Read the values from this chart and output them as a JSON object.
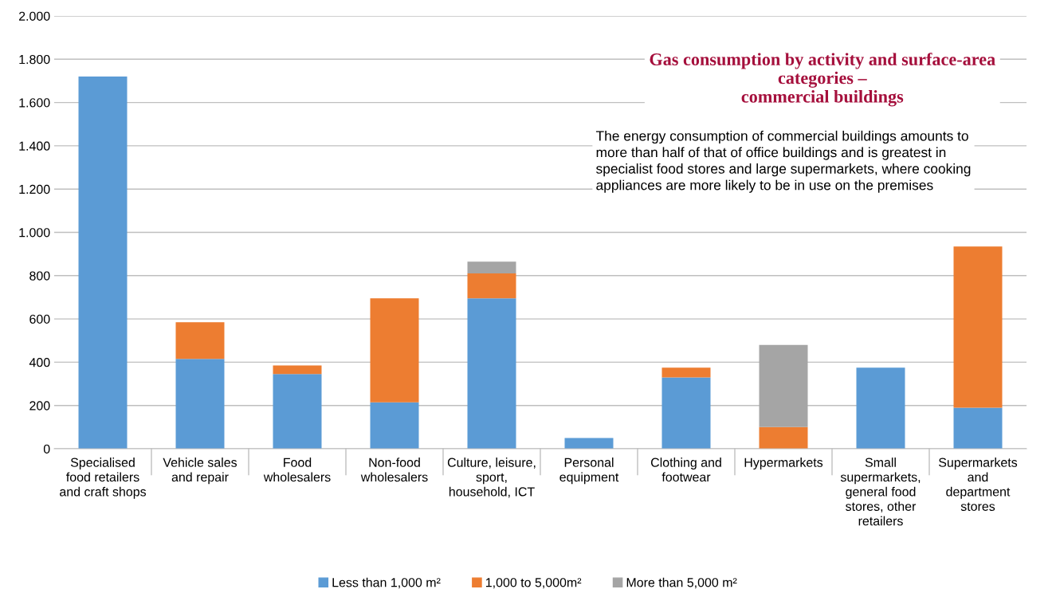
{
  "chart_data": {
    "type": "bar",
    "stacked": true,
    "title": "Gas consumption by activity and surface-area\ncategories –\ncommercial buildings",
    "categories": [
      "Specialised\nfood retailers\nand craft shops",
      "Vehicle sales\nand repair",
      "Food\nwholesalers",
      "Non-food\nwholesalers",
      "Culture, leisure,\nsport,\nhousehold, ICT",
      "Personal\nequipment",
      "Clothing and\nfootwear",
      "Hypermarkets",
      "Small\nsupermarkets,\ngeneral food\nstores, other\nretailers",
      "Supermarkets\nand\ndepartment\nstores"
    ],
    "series": [
      {
        "name": "Less than 1,000 m²",
        "color": "#5b9bd5",
        "values": [
          1720,
          415,
          345,
          215,
          695,
          50,
          330,
          0,
          375,
          190
        ]
      },
      {
        "name": "1,000 to 5,000m²",
        "color": "#ed7d31",
        "values": [
          0,
          170,
          40,
          480,
          115,
          0,
          45,
          100,
          0,
          745
        ]
      },
      {
        "name": "More than 5,000 m²",
        "color": "#a5a5a5",
        "values": [
          0,
          0,
          0,
          0,
          55,
          0,
          0,
          380,
          0,
          0
        ]
      }
    ],
    "ylim": [
      0,
      2000
    ],
    "yticks": [
      0,
      200,
      400,
      600,
      800,
      {
        "value": 1000,
        "label": "1.000"
      },
      {
        "value": 1200,
        "label": "1.200"
      },
      {
        "value": 1400,
        "label": "1.400"
      },
      {
        "value": 1600,
        "label": "1.600"
      },
      {
        "value": 1800,
        "label": "1.800"
      },
      {
        "value": 2000,
        "label": "2.000"
      }
    ],
    "grid": "y",
    "legend": "bottom",
    "annotations": [
      "The energy consumption of commercial buildings amounts to\nmore than half of that of office buildings and is greatest in\nspecialist food stores and large supermarkets, where cooking\nappliances are more likely to be in use on the premises"
    ]
  }
}
